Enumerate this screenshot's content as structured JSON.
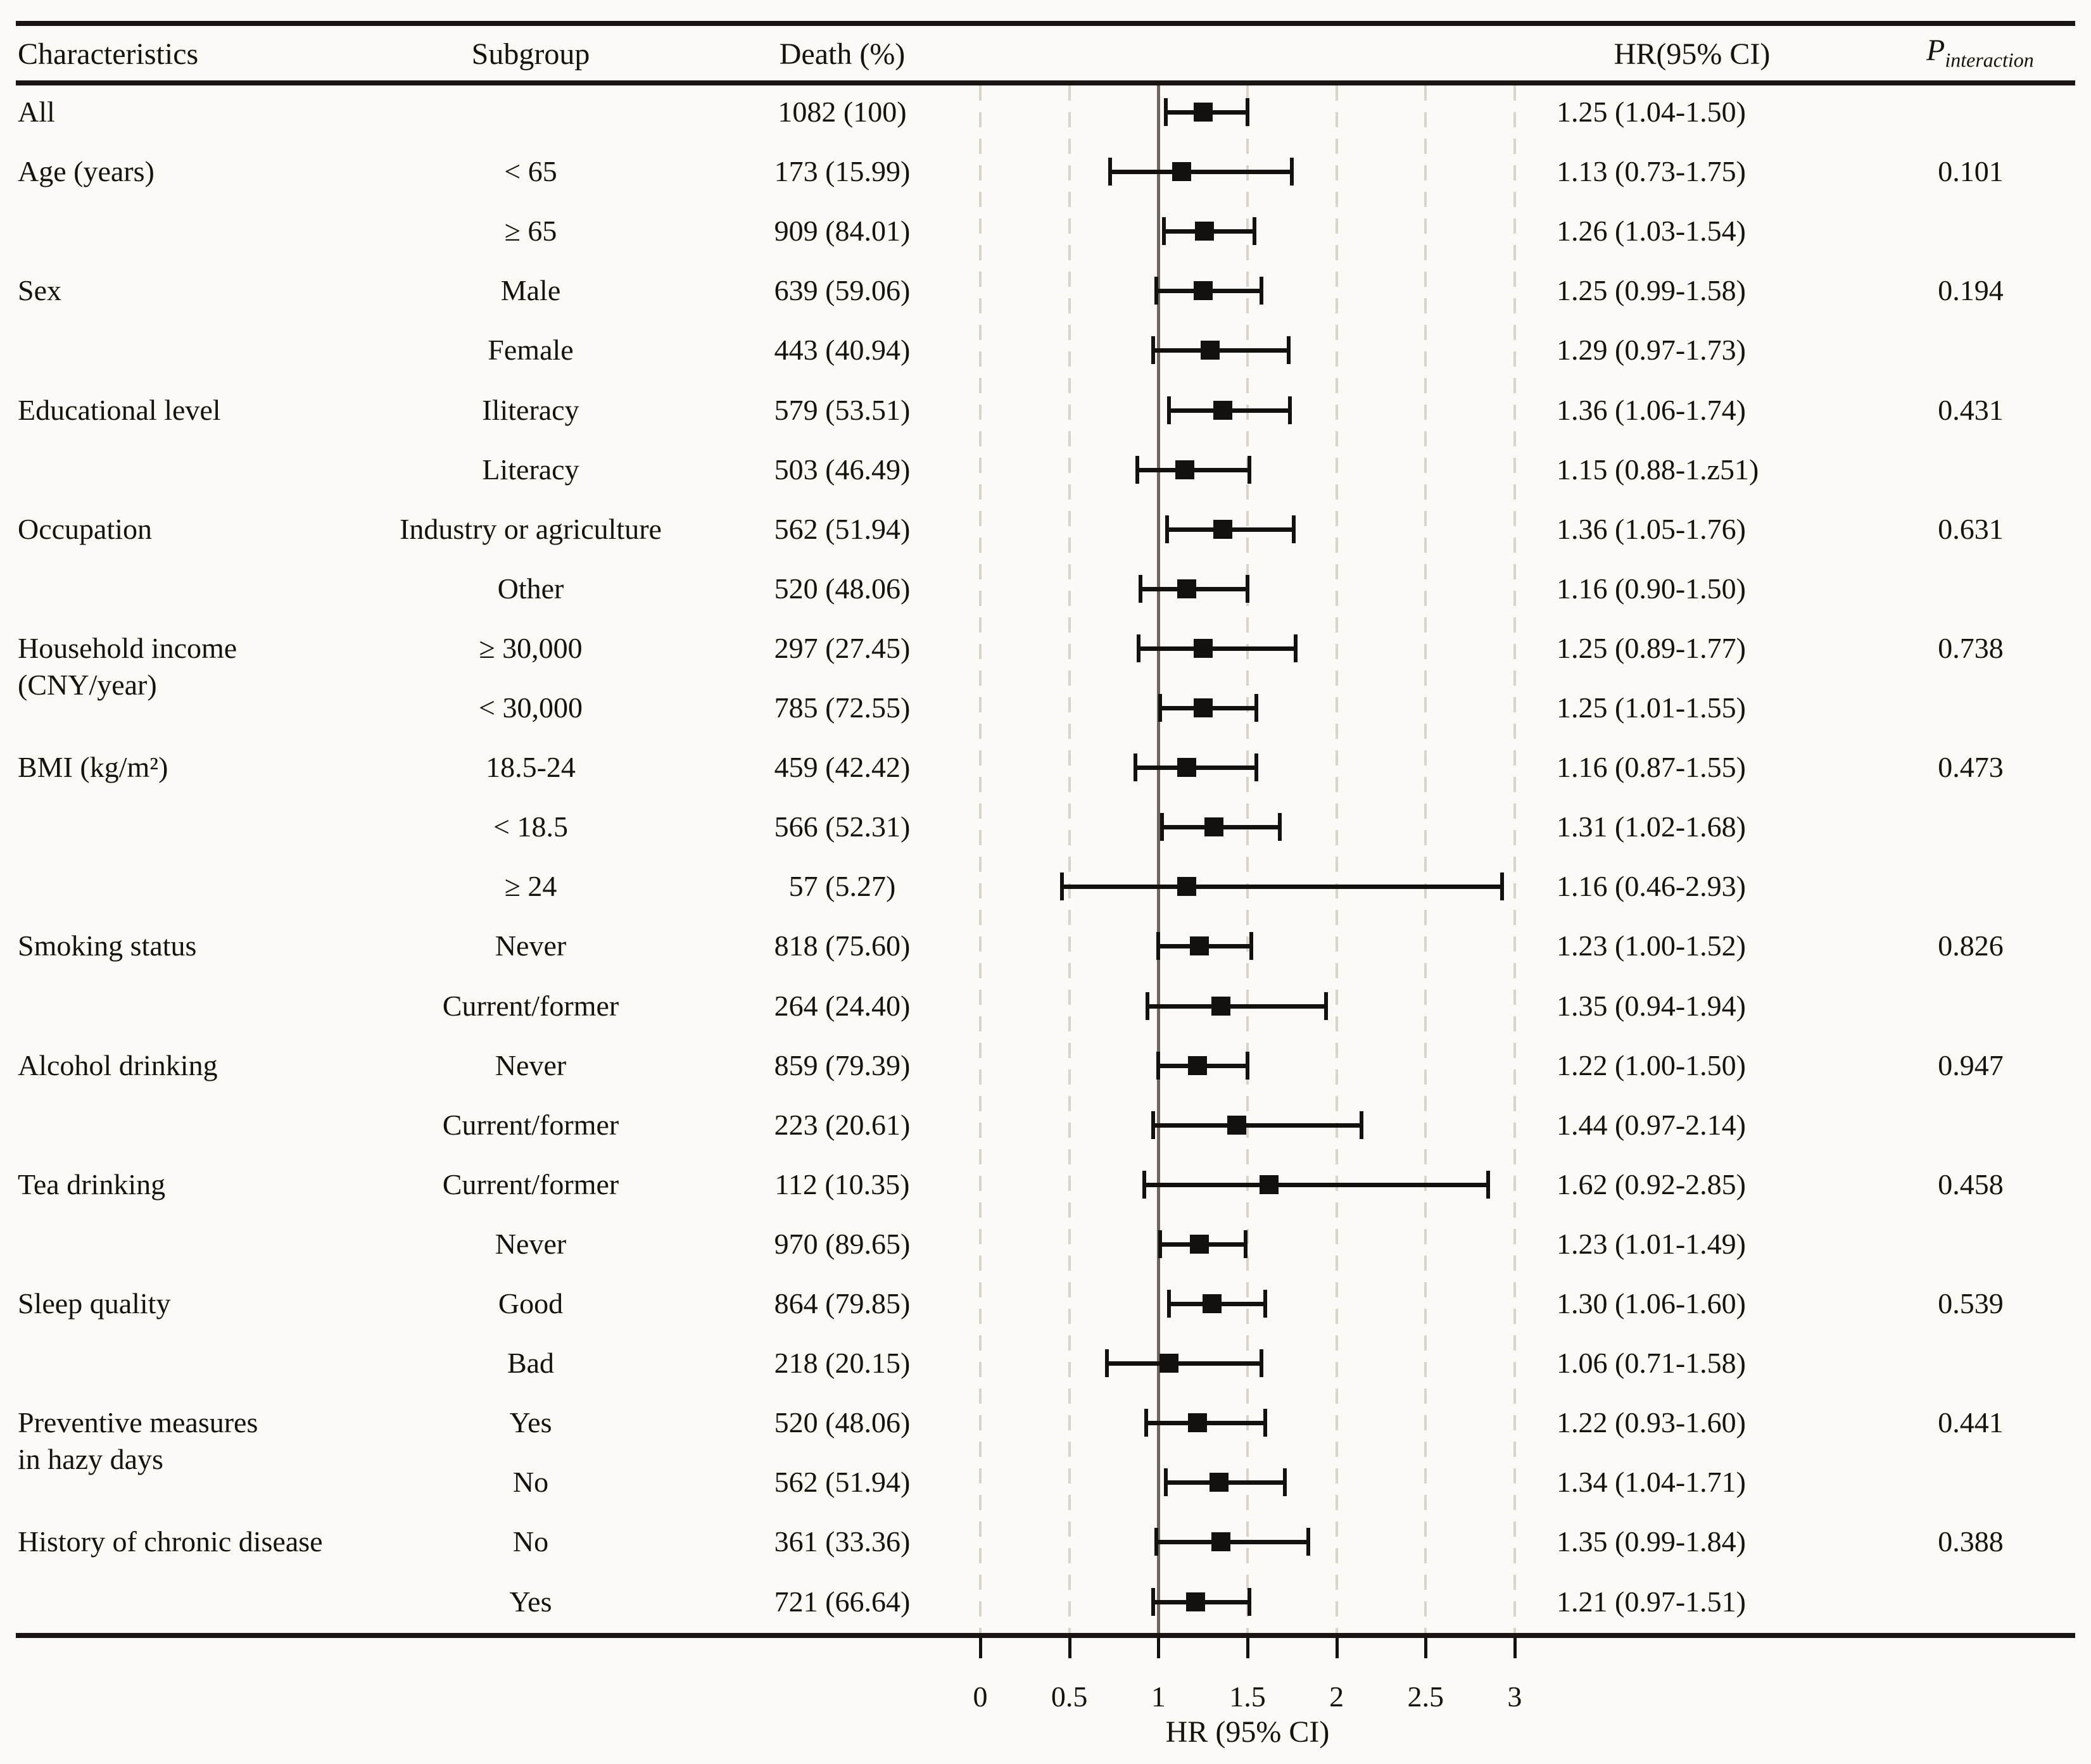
{
  "header": {
    "characteristics": "Characteristics",
    "subgroup": "Subgroup",
    "death": "Death (%)",
    "hr_ci": "HR(95% CI)",
    "p_label": "P",
    "p_sub": "interaction"
  },
  "axis": {
    "label": "HR (95% CI)",
    "tick_labels": [
      "0",
      "0.5",
      "1",
      "1.5",
      "2",
      "2.5",
      "3"
    ]
  },
  "colors": {
    "background": "#fbfaf7",
    "text": "#17120e",
    "rule": "#1a1512",
    "dashed_gridline": "#d9d3cb",
    "reference_line": "#6f6660",
    "marker": "#14100d"
  },
  "chart_data": {
    "type": "scatter",
    "variant": "forest-plot",
    "title": "",
    "xlabel": "HR (95% CI)",
    "xlim": [
      0,
      3
    ],
    "xticks": [
      0,
      0.5,
      1,
      1.5,
      2,
      2.5,
      3
    ],
    "reference_line_x": 1,
    "dashed_gridlines_x": [
      0,
      0.5,
      1.5,
      2,
      2.5,
      3
    ],
    "grid": true,
    "rows": [
      {
        "characteristic": "All",
        "characteristic_line2": "",
        "subgroup": "",
        "death": "1082 (100)",
        "hr": 1.25,
        "ci_low": 1.04,
        "ci_high": 1.5,
        "hr_text": "1.25 (1.04-1.50)",
        "p": ""
      },
      {
        "characteristic": "Age (years)",
        "characteristic_line2": "",
        "subgroup": "< 65",
        "death": "173 (15.99)",
        "hr": 1.13,
        "ci_low": 0.73,
        "ci_high": 1.75,
        "hr_text": "1.13 (0.73-1.75)",
        "p": "0.101"
      },
      {
        "characteristic": "",
        "characteristic_line2": "",
        "subgroup": "≥ 65",
        "death": "909 (84.01)",
        "hr": 1.26,
        "ci_low": 1.03,
        "ci_high": 1.54,
        "hr_text": "1.26 (1.03-1.54)",
        "p": ""
      },
      {
        "characteristic": "Sex",
        "characteristic_line2": "",
        "subgroup": "Male",
        "death": "639 (59.06)",
        "hr": 1.25,
        "ci_low": 0.99,
        "ci_high": 1.58,
        "hr_text": "1.25 (0.99-1.58)",
        "p": "0.194"
      },
      {
        "characteristic": "",
        "characteristic_line2": "",
        "subgroup": "Female",
        "death": "443 (40.94)",
        "hr": 1.29,
        "ci_low": 0.97,
        "ci_high": 1.73,
        "hr_text": "1.29 (0.97-1.73)",
        "p": ""
      },
      {
        "characteristic": "Educational level",
        "characteristic_line2": "",
        "subgroup": "Iliteracy",
        "death": "579 (53.51)",
        "hr": 1.36,
        "ci_low": 1.06,
        "ci_high": 1.74,
        "hr_text": "1.36 (1.06-1.74)",
        "p": "0.431"
      },
      {
        "characteristic": "",
        "characteristic_line2": "",
        "subgroup": "Literacy",
        "death": "503 (46.49)",
        "hr": 1.15,
        "ci_low": 0.88,
        "ci_high": 1.51,
        "hr_text": "1.15 (0.88-1.z51)",
        "p": ""
      },
      {
        "characteristic": "Occupation",
        "characteristic_line2": "",
        "subgroup": "Industry or agriculture",
        "death": "562 (51.94)",
        "hr": 1.36,
        "ci_low": 1.05,
        "ci_high": 1.76,
        "hr_text": "1.36 (1.05-1.76)",
        "p": "0.631"
      },
      {
        "characteristic": "",
        "characteristic_line2": "",
        "subgroup": "Other",
        "death": "520 (48.06)",
        "hr": 1.16,
        "ci_low": 0.9,
        "ci_high": 1.5,
        "hr_text": "1.16 (0.90-1.50)",
        "p": ""
      },
      {
        "characteristic": "Household income",
        "characteristic_line2": "(CNY/year)",
        "subgroup": "≥ 30,000",
        "death": "297 (27.45)",
        "hr": 1.25,
        "ci_low": 0.89,
        "ci_high": 1.77,
        "hr_text": "1.25 (0.89-1.77)",
        "p": "0.738"
      },
      {
        "characteristic": "",
        "characteristic_line2": "",
        "subgroup": "< 30,000",
        "death": "785 (72.55)",
        "hr": 1.25,
        "ci_low": 1.01,
        "ci_high": 1.55,
        "hr_text": "1.25 (1.01-1.55)",
        "p": ""
      },
      {
        "characteristic": "BMI (kg/m²)",
        "characteristic_line2": "",
        "subgroup": "18.5-24",
        "death": "459 (42.42)",
        "hr": 1.16,
        "ci_low": 0.87,
        "ci_high": 1.55,
        "hr_text": "1.16 (0.87-1.55)",
        "p": "0.473"
      },
      {
        "characteristic": "",
        "characteristic_line2": "",
        "subgroup": "< 18.5",
        "death": "566 (52.31)",
        "hr": 1.31,
        "ci_low": 1.02,
        "ci_high": 1.68,
        "hr_text": "1.31 (1.02-1.68)",
        "p": ""
      },
      {
        "characteristic": "",
        "characteristic_line2": "",
        "subgroup": "≥ 24",
        "death": "57 (5.27)",
        "hr": 1.16,
        "ci_low": 0.46,
        "ci_high": 2.93,
        "hr_text": "1.16 (0.46-2.93)",
        "p": ""
      },
      {
        "characteristic": "Smoking status",
        "characteristic_line2": "",
        "subgroup": "Never",
        "death": "818 (75.60)",
        "hr": 1.23,
        "ci_low": 1.0,
        "ci_high": 1.52,
        "hr_text": "1.23 (1.00-1.52)",
        "p": "0.826"
      },
      {
        "characteristic": "",
        "characteristic_line2": "",
        "subgroup": "Current/former",
        "death": "264 (24.40)",
        "hr": 1.35,
        "ci_low": 0.94,
        "ci_high": 1.94,
        "hr_text": "1.35 (0.94-1.94)",
        "p": ""
      },
      {
        "characteristic": "Alcohol drinking",
        "characteristic_line2": "",
        "subgroup": "Never",
        "death": "859 (79.39)",
        "hr": 1.22,
        "ci_low": 1.0,
        "ci_high": 1.5,
        "hr_text": "1.22 (1.00-1.50)",
        "p": "0.947"
      },
      {
        "characteristic": "",
        "characteristic_line2": "",
        "subgroup": "Current/former",
        "death": "223 (20.61)",
        "hr": 1.44,
        "ci_low": 0.97,
        "ci_high": 2.14,
        "hr_text": "1.44 (0.97-2.14)",
        "p": ""
      },
      {
        "characteristic": "Tea drinking",
        "characteristic_line2": "",
        "subgroup": "Current/former",
        "death": "112 (10.35)",
        "hr": 1.62,
        "ci_low": 0.92,
        "ci_high": 2.85,
        "hr_text": "1.62 (0.92-2.85)",
        "p": "0.458"
      },
      {
        "characteristic": "",
        "characteristic_line2": "",
        "subgroup": "Never",
        "death": "970 (89.65)",
        "hr": 1.23,
        "ci_low": 1.01,
        "ci_high": 1.49,
        "hr_text": "1.23 (1.01-1.49)",
        "p": ""
      },
      {
        "characteristic": "Sleep quality",
        "characteristic_line2": "",
        "subgroup": "Good",
        "death": "864 (79.85)",
        "hr": 1.3,
        "ci_low": 1.06,
        "ci_high": 1.6,
        "hr_text": "1.30 (1.06-1.60)",
        "p": "0.539"
      },
      {
        "characteristic": "",
        "characteristic_line2": "",
        "subgroup": "Bad",
        "death": "218 (20.15)",
        "hr": 1.06,
        "ci_low": 0.71,
        "ci_high": 1.58,
        "hr_text": "1.06 (0.71-1.58)",
        "p": ""
      },
      {
        "characteristic": "Preventive measures",
        "characteristic_line2": "in hazy days",
        "subgroup": "Yes",
        "death": "520 (48.06)",
        "hr": 1.22,
        "ci_low": 0.93,
        "ci_high": 1.6,
        "hr_text": "1.22 (0.93-1.60)",
        "p": "0.441"
      },
      {
        "characteristic": "",
        "characteristic_line2": "",
        "subgroup": "No",
        "death": "562 (51.94)",
        "hr": 1.34,
        "ci_low": 1.04,
        "ci_high": 1.71,
        "hr_text": "1.34 (1.04-1.71)",
        "p": ""
      },
      {
        "characteristic": "History of chronic disease",
        "characteristic_line2": "",
        "subgroup": "No",
        "death": "361 (33.36)",
        "hr": 1.35,
        "ci_low": 0.99,
        "ci_high": 1.84,
        "hr_text": "1.35 (0.99-1.84)",
        "p": "0.388"
      },
      {
        "characteristic": "",
        "characteristic_line2": "",
        "subgroup": "Yes",
        "death": "721 (66.64)",
        "hr": 1.21,
        "ci_low": 0.97,
        "ci_high": 1.51,
        "hr_text": "1.21 (0.97-1.51)",
        "p": ""
      }
    ]
  }
}
